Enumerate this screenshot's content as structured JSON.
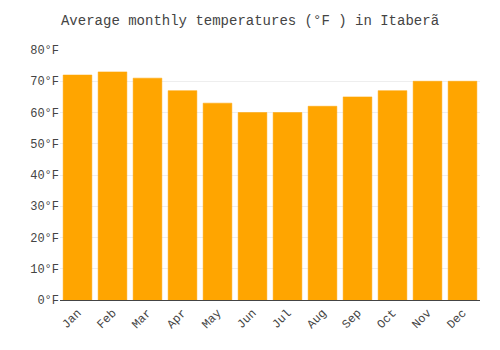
{
  "chart_data": {
    "type": "bar",
    "title": "Average monthly temperatures (°F ) in Itaberã",
    "categories": [
      "Jan",
      "Feb",
      "Mar",
      "Apr",
      "May",
      "Jun",
      "Jul",
      "Aug",
      "Sep",
      "Oct",
      "Nov",
      "Dec"
    ],
    "values": [
      72,
      73,
      71,
      67,
      63,
      60,
      60,
      62,
      65,
      67,
      70,
      70
    ],
    "color": "#FFA500",
    "ylim": [
      0,
      80
    ],
    "yticks": [
      {
        "value": 0,
        "label": "0°F"
      },
      {
        "value": 10,
        "label": "10°F"
      },
      {
        "value": 20,
        "label": "20°F"
      },
      {
        "value": 30,
        "label": "30°F"
      },
      {
        "value": 40,
        "label": "40°F"
      },
      {
        "value": 50,
        "label": "50°F"
      },
      {
        "value": 60,
        "label": "60°F"
      },
      {
        "value": 70,
        "label": "70°F"
      },
      {
        "value": 80,
        "label": "80°F"
      }
    ],
    "grid": true
  }
}
